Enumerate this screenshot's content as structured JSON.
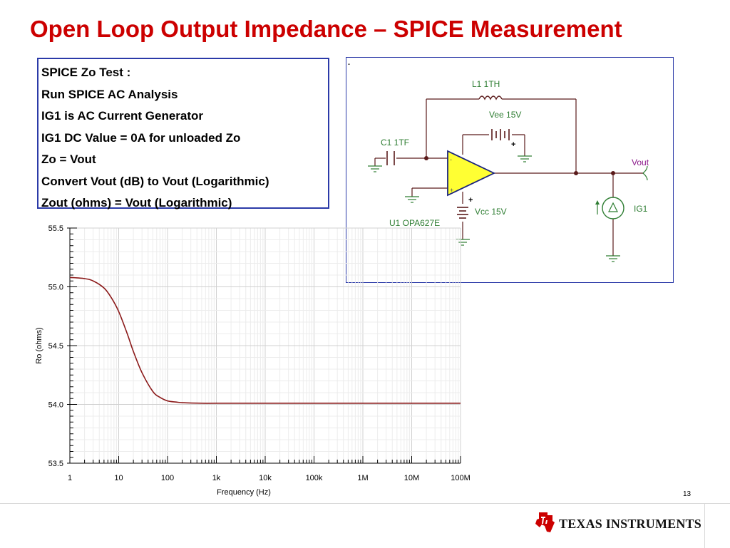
{
  "slide": {
    "title": "Open Loop Output Impedance – SPICE Measurement",
    "page_number": "13",
    "notes": [
      "SPICE Zo Test :",
      "Run SPICE  AC Analysis",
      "IG1 is AC Current Generator",
      "IG1 DC Value = 0A for unloaded   Zo",
      "Zo = Vout",
      "Convert Vout (dB) to Vout (Logarithmic)",
      "Zout (ohms) = Vout (Logarithmic)"
    ],
    "brand": "Texas Instruments",
    "brand_display": "TEXAS INSTRUMENTS"
  },
  "schematic": {
    "labels": {
      "l1": "L1 1TH",
      "vee": "Vee 15V",
      "c1": "C1 1TF",
      "vout": "Vout",
      "ig1": "IG1",
      "vcc": "Vcc 15V",
      "u1": "U1 OPA627E",
      "plus1": "+",
      "plus2": "+",
      "dash": "-",
      "dot": "."
    },
    "colors": {
      "wire": "#5a1a1a",
      "label": "#2e7d32",
      "vout_label": "#8b1a8b",
      "opamp_fill": "#ffff33",
      "opamp_border": "#1a237e",
      "frame": "#2b3aa8"
    }
  },
  "chart_data": {
    "type": "line",
    "xscale": "log",
    "xlabel": "Frequency (Hz)",
    "ylabel": "Ro (ohms)",
    "xlim": [
      1,
      100000000
    ],
    "ylim": [
      53.5,
      55.5
    ],
    "x_ticks": [
      1,
      10,
      100,
      1000,
      10000,
      100000,
      1000000,
      10000000,
      100000000
    ],
    "x_tick_labels": [
      "1",
      "10",
      "100",
      "1k",
      "10k",
      "100k",
      "1M",
      "10M",
      "100M"
    ],
    "y_ticks": [
      53.5,
      54.0,
      54.5,
      55.0,
      55.5
    ],
    "y_tick_labels": [
      "53.5",
      "54.0",
      "54.5",
      "55.0",
      "55.5"
    ],
    "grid": true,
    "series": [
      {
        "color": "#8b1a1a",
        "x": [
          1,
          2,
          3,
          5,
          7,
          10,
          15,
          20,
          30,
          50,
          70,
          100,
          150,
          200,
          500,
          1000,
          10000,
          100000,
          1000000,
          10000000,
          100000000
        ],
        "y": [
          55.08,
          55.07,
          55.05,
          54.99,
          54.91,
          54.79,
          54.6,
          54.45,
          54.27,
          54.11,
          54.06,
          54.03,
          54.02,
          54.015,
          54.01,
          54.01,
          54.01,
          54.01,
          54.01,
          54.01,
          54.01
        ]
      }
    ]
  }
}
